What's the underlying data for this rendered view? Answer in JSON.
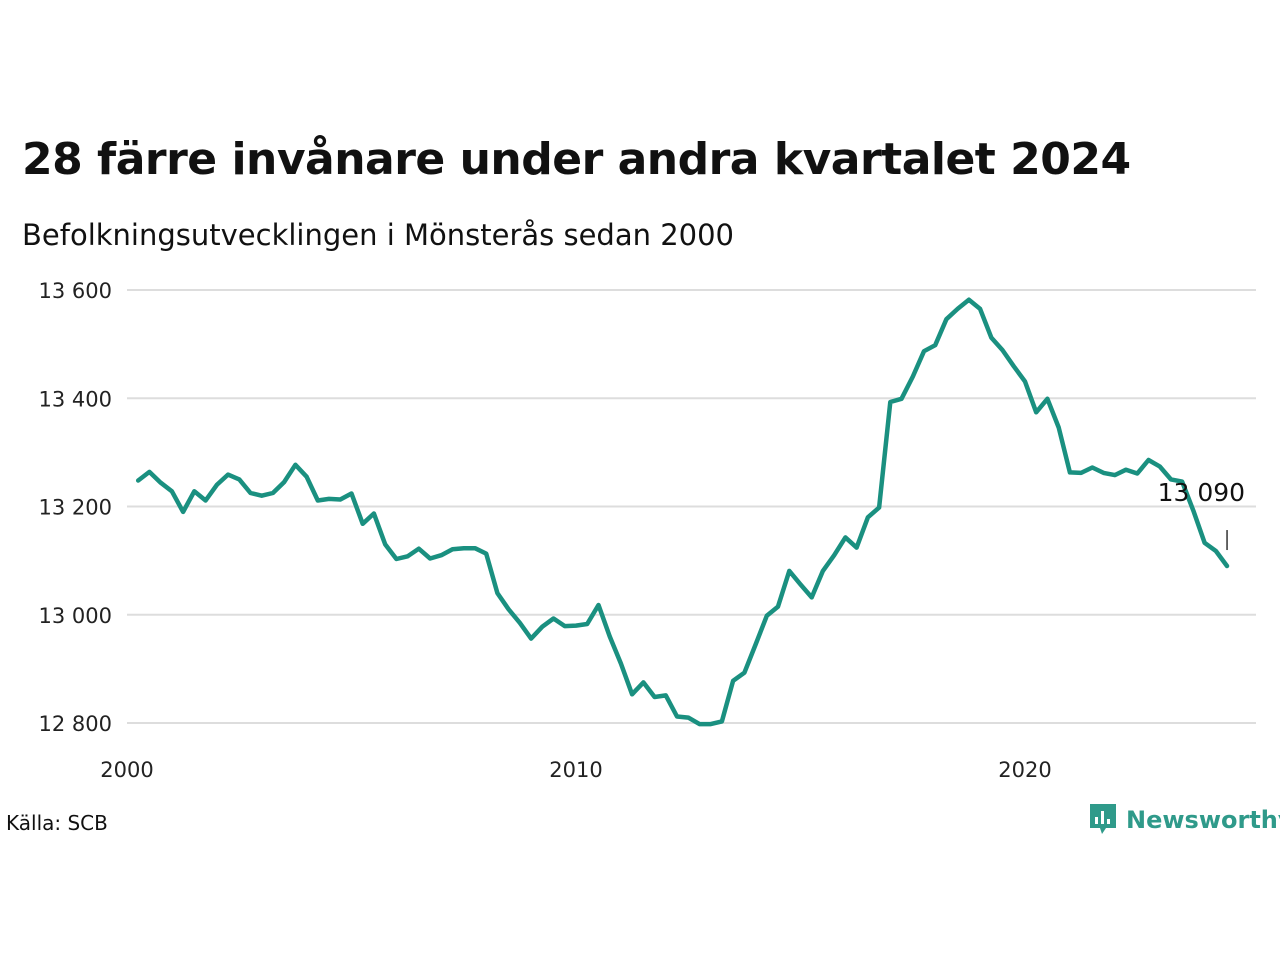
{
  "header": {
    "title": "28 färre invånare under andra kvartalet 2024",
    "subtitle": "Befolkningsutvecklingen i Mönsterås sedan 2000"
  },
  "footer": {
    "source": "Källa: SCB",
    "brand": "Newsworthy",
    "brand_icon": "newsworthy-logo-icon",
    "brand_color": "#2f9a8a"
  },
  "chart_data": {
    "type": "line",
    "title": "28 färre invånare under andra kvartalet 2024",
    "subtitle": "Befolkningsutvecklingen i Mönsterås sedan 2000",
    "xlabel": "",
    "ylabel": "",
    "x_ticks": [
      "2000",
      "2010",
      "2020"
    ],
    "y_ticks": [
      "12 800",
      "13 000",
      "13 200",
      "13 400",
      "13 600"
    ],
    "ylim": [
      12800,
      13600
    ],
    "xlim": [
      2000,
      2025.75
    ],
    "grid": "horizontal",
    "line_color": "#1a9080",
    "end_label": "13 090",
    "series": [
      {
        "x": [
          2000.25,
          2000.5,
          2000.75,
          2001.0,
          2001.25,
          2001.5,
          2001.75,
          2002.0,
          2002.25,
          2002.5,
          2002.75,
          2003.0,
          2003.25,
          2003.5,
          2003.75,
          2004.0,
          2004.25,
          2004.5,
          2004.75,
          2005.0,
          2005.25,
          2005.5,
          2005.75,
          2006.0,
          2006.25,
          2006.5,
          2006.75,
          2007.0,
          2007.25,
          2007.5,
          2007.75,
          2008.0,
          2008.25,
          2008.5,
          2008.75,
          2009.0,
          2009.25,
          2009.5,
          2009.75,
          2010.0,
          2010.25,
          2010.5,
          2010.75,
          2011.0,
          2011.25,
          2011.5,
          2011.75,
          2012.0,
          2012.25,
          2012.5,
          2012.75,
          2013.0,
          2013.25,
          2013.5,
          2013.75,
          2014.0,
          2014.25,
          2014.5,
          2014.75,
          2015.0,
          2015.25,
          2015.5,
          2015.75,
          2016.0,
          2016.25,
          2016.5,
          2016.75,
          2017.0,
          2017.25,
          2017.5,
          2017.75,
          2018.0,
          2018.25,
          2018.5,
          2018.75,
          2019.0,
          2019.25,
          2019.5,
          2019.75,
          2020.0,
          2020.25,
          2020.5,
          2020.75,
          2021.0,
          2021.25,
          2021.5,
          2021.75,
          2022.0,
          2022.25,
          2022.5,
          2022.75,
          2023.0,
          2023.25,
          2023.5,
          2023.75,
          2024.0,
          2024.25,
          2024.5
        ],
        "values": [
          13248,
          13264,
          13244,
          13228,
          13190,
          13228,
          13211,
          13240,
          13259,
          13250,
          13225,
          13220,
          13225,
          13245,
          13277,
          13255,
          13211,
          13214,
          13213,
          13224,
          13168,
          13187,
          13130,
          13103,
          13108,
          13122,
          13104,
          13110,
          13121,
          13123,
          13123,
          13113,
          13040,
          13010,
          12985,
          12956,
          12978,
          12993,
          12979,
          12980,
          12983,
          13018,
          12960,
          12910,
          12853,
          12875,
          12848,
          12851,
          12812,
          12810,
          12798,
          12798,
          12803,
          12878,
          12893,
          12945,
          12998,
          13015,
          13081,
          13056,
          13032,
          13081,
          13110,
          13143,
          13124,
          13180,
          13198,
          13393,
          13399,
          13440,
          13487,
          13498,
          13546,
          13565,
          13582,
          13565,
          13512,
          13489,
          13459,
          13431,
          13374,
          13399,
          13346,
          13263,
          13262,
          13272,
          13262,
          13258,
          13268,
          13261,
          13286,
          13274,
          13250,
          13246,
          13192,
          13133,
          13118,
          13090
        ]
      }
    ]
  }
}
